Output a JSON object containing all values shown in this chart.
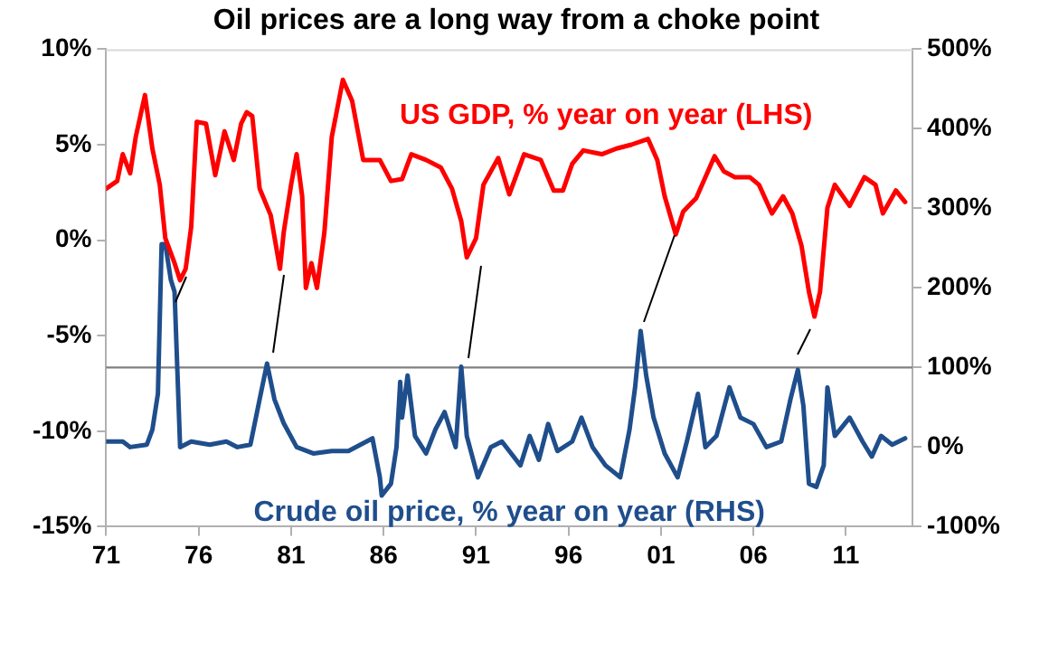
{
  "chart_data": {
    "type": "line",
    "title": "Oil prices are a long way from a choke point",
    "legend": false,
    "grid": false,
    "marker": "none",
    "line_style": "solid",
    "xlim": [
      1971,
      2014.6
    ],
    "xticks": [
      {
        "value": 1971,
        "label": "71"
      },
      {
        "value": 1976,
        "label": "76"
      },
      {
        "value": 1981,
        "label": "81"
      },
      {
        "value": 1986,
        "label": "86"
      },
      {
        "value": 1991,
        "label": "91"
      },
      {
        "value": 1996,
        "label": "96"
      },
      {
        "value": 2001,
        "label": "01"
      },
      {
        "value": 2006,
        "label": "06"
      },
      {
        "value": 2011,
        "label": "11"
      }
    ],
    "ylim": [
      -15,
      10
    ],
    "yticks": [
      {
        "value": -15,
        "label": "-15%"
      },
      {
        "value": -10,
        "label": "-10%"
      },
      {
        "value": -5,
        "label": "-5%"
      },
      {
        "value": 0,
        "label": "0%"
      },
      {
        "value": 5,
        "label": "5%"
      },
      {
        "value": 10,
        "label": "10%"
      }
    ],
    "y2lim": [
      -100,
      500
    ],
    "y2ticks": [
      {
        "value": -100,
        "label": "-100%"
      },
      {
        "value": 0,
        "label": "0%"
      },
      {
        "value": 100,
        "label": "100%"
      },
      {
        "value": 200,
        "label": "200%"
      },
      {
        "value": 300,
        "label": "300%"
      },
      {
        "value": 400,
        "label": "400%"
      },
      {
        "value": 500,
        "label": "500%"
      }
    ],
    "ref_lines": [
      {
        "axis": "y2",
        "value": 100,
        "color": "#808080"
      }
    ],
    "series": [
      {
        "name": "US GDP, % year on year (LHS)",
        "color": "#ff0000",
        "axis": "y",
        "x": [
          1971.0,
          1971.6,
          1971.9,
          1972.3,
          1972.6,
          1973.1,
          1973.5,
          1973.9,
          1974.2,
          1974.7,
          1975.0,
          1975.3,
          1975.6,
          1975.9,
          1976.4,
          1976.9,
          1977.4,
          1977.9,
          1978.3,
          1978.6,
          1978.9,
          1979.3,
          1979.9,
          1980.4,
          1980.6,
          1981.0,
          1981.3,
          1981.6,
          1981.8,
          1982.1,
          1982.4,
          1982.8,
          1983.2,
          1983.8,
          1984.3,
          1984.9,
          1985.8,
          1986.4,
          1987.0,
          1987.5,
          1988.3,
          1989.1,
          1989.7,
          1990.2,
          1990.5,
          1991.0,
          1991.4,
          1992.2,
          1992.8,
          1993.6,
          1994.5,
          1995.2,
          1995.7,
          1996.2,
          1996.8,
          1997.8,
          1998.6,
          1999.4,
          2000.3,
          2000.8,
          2001.2,
          2001.8,
          2002.2,
          2002.9,
          2003.4,
          2003.9,
          2004.4,
          2005.0,
          2005.8,
          2006.3,
          2007.0,
          2007.6,
          2008.1,
          2008.6,
          2009.0,
          2009.3,
          2009.6,
          2010.0,
          2010.4,
          2011.2,
          2012.0,
          2012.6,
          2013.0,
          2013.7,
          2014.2
        ],
        "values": [
          2.7,
          3.1,
          4.5,
          3.5,
          5.4,
          7.6,
          4.8,
          2.9,
          0.1,
          -1.2,
          -2.1,
          -1.5,
          0.7,
          6.2,
          6.1,
          3.4,
          5.7,
          4.2,
          6.1,
          6.7,
          6.5,
          2.7,
          1.3,
          -1.5,
          0.4,
          2.9,
          4.5,
          2.3,
          -2.5,
          -1.2,
          -2.5,
          0.4,
          5.4,
          8.4,
          7.3,
          4.2,
          4.2,
          3.1,
          3.2,
          4.5,
          4.2,
          3.8,
          2.7,
          1.0,
          -0.9,
          0.1,
          2.9,
          4.3,
          2.4,
          4.5,
          4.2,
          2.6,
          2.6,
          4.0,
          4.7,
          4.5,
          4.8,
          5.0,
          5.3,
          4.2,
          2.3,
          0.3,
          1.5,
          2.2,
          3.3,
          4.4,
          3.6,
          3.3,
          3.3,
          2.9,
          1.4,
          2.3,
          1.4,
          -0.3,
          -2.7,
          -4.0,
          -2.7,
          1.7,
          2.9,
          1.8,
          3.3,
          2.9,
          1.4,
          2.6,
          2.0
        ]
      },
      {
        "name": "Crude oil price, % year on year (RHS)",
        "color": "#1f4e8c",
        "axis": "y2",
        "x": [
          1971.0,
          1971.9,
          1972.3,
          1973.2,
          1973.5,
          1973.8,
          1974.0,
          1974.2,
          1974.5,
          1974.7,
          1975.0,
          1975.6,
          1976.6,
          1977.5,
          1978.1,
          1978.8,
          1979.3,
          1979.7,
          1980.1,
          1980.6,
          1981.3,
          1982.2,
          1983.2,
          1984.1,
          1985.4,
          1985.8,
          1985.9,
          1986.4,
          1986.7,
          1986.9,
          1987.0,
          1987.3,
          1987.7,
          1988.3,
          1988.8,
          1989.3,
          1989.9,
          1990.2,
          1990.5,
          1991.1,
          1991.8,
          1992.4,
          1993.4,
          1993.9,
          1994.4,
          1994.9,
          1995.4,
          1996.2,
          1996.7,
          1997.3,
          1998.0,
          1998.8,
          1999.3,
          1999.6,
          1999.9,
          2000.2,
          2000.6,
          2001.2,
          2001.9,
          2002.4,
          2003.0,
          2003.4,
          2004.0,
          2004.7,
          2005.3,
          2006.0,
          2006.7,
          2007.5,
          2008.0,
          2008.4,
          2008.7,
          2009.0,
          2009.4,
          2009.8,
          2010.0,
          2010.4,
          2011.2,
          2011.9,
          2012.4,
          2012.9,
          2013.5,
          2014.2
        ],
        "values": [
          7,
          7,
          0,
          3,
          22,
          67,
          255,
          255,
          210,
          195,
          0,
          7,
          3,
          7,
          0,
          3,
          60,
          105,
          60,
          30,
          0,
          -8,
          -5,
          -5,
          11,
          -38,
          -61,
          -46,
          0,
          82,
          37,
          90,
          14,
          -8,
          22,
          44,
          0,
          101,
          14,
          -38,
          0,
          7,
          -23,
          14,
          -16,
          29,
          -5,
          7,
          37,
          0,
          -23,
          -38,
          22,
          75,
          146,
          90,
          37,
          -8,
          -38,
          7,
          67,
          0,
          14,
          75,
          37,
          29,
          0,
          7,
          60,
          97,
          52,
          -46,
          -50,
          -23,
          75,
          14,
          37,
          7,
          -12,
          14,
          3,
          11
        ]
      }
    ]
  }
}
